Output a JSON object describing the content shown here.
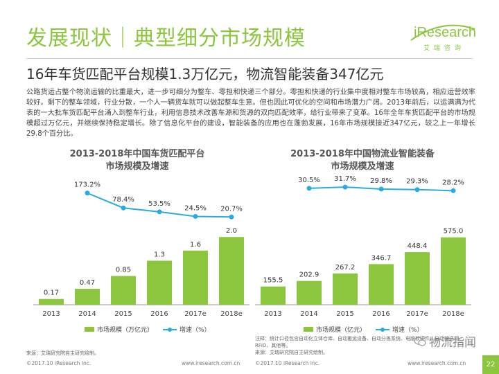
{
  "header": {
    "title": "发展现状｜典型细分市场规模",
    "logo_text": "iResearch",
    "logo_sub": "艾瑞咨询"
  },
  "subtitle": "16年车货匹配平台规模1.3万亿元，物流智能装备347亿元",
  "body_text": "公路货运占整个物流运输的比重最大，进一步可细分为整车、零担和快递三个部分。零担和快递的行业集中度相对整车市场较高，相应运营效率较好。剩下的整车领域，行业分散，一个人一辆货车就可以做起整车生意。但也因此可优化的空间和市场潜力广阔。2013年前后，以运满满为代表的一大批车货匹配平台涌入到整车行业，利用信息技术改善车源和货源的双向匹配效率，给行业带来了变革。16年全年车货匹配平台的市场规模超过万亿元，并继续保持稳定增长。除了信息化平台的建设，智能装备的应用也在蓬勃发展，16年市场规模接近347亿元，较之上一年增长29.8个百分比。",
  "colors": {
    "accent": "#8cc63f",
    "line": "#29abe2"
  },
  "chart_data": [
    {
      "type": "bar",
      "title_line1": "2013-2018年中国车货匹配平台",
      "title_line2": "市场规模及增速",
      "categories": [
        "2013",
        "2014",
        "2015",
        "2016",
        "2017e",
        "2018e"
      ],
      "series": [
        {
          "name": "市场规模（万亿元）",
          "kind": "bar",
          "values": [
            0.17,
            0.47,
            0.85,
            1.3,
            1.6,
            2.0
          ],
          "labels": [
            "0.17",
            "0.47",
            "0.85",
            "1.3",
            "1.6",
            "2.0"
          ]
        },
        {
          "name": "增速（%）",
          "kind": "line",
          "x": [
            "2014",
            "2015",
            "2016",
            "2017e",
            "2018e"
          ],
          "values": [
            173.2,
            78.4,
            53.5,
            24.5,
            20.7
          ],
          "labels": [
            "173.2%",
            "78.4%",
            "53.5%",
            "24.5%",
            "20.7%"
          ]
        }
      ],
      "ylim": [
        0,
        2.25
      ],
      "line_ylim": [
        0,
        300
      ]
    },
    {
      "type": "bar",
      "title_line1": "2013-2018年中国物流业智能装备",
      "title_line2": "市场规模及增速",
      "categories": [
        "2013",
        "2014",
        "2015",
        "2016",
        "2017e",
        "2018e"
      ],
      "series": [
        {
          "name": "市场规模（亿元）",
          "kind": "bar",
          "values": [
            155.5,
            202.9,
            267.2,
            346.7,
            448.4,
            575.0
          ],
          "labels": [
            "155.5",
            "202.9",
            "267.2",
            "346.7",
            "448.4",
            "575.0"
          ]
        },
        {
          "name": "增速（%）",
          "kind": "line",
          "x": [
            "2014",
            "2015",
            "2016",
            "2017e",
            "2018e"
          ],
          "values": [
            30.5,
            31.7,
            29.8,
            29.3,
            28.2
          ],
          "labels": [
            "30.5%",
            "31.7%",
            "29.8%",
            "29.3%",
            "28.2%"
          ]
        }
      ],
      "ylim": [
        0,
        650
      ],
      "line_ylim": [
        0,
        45
      ]
    }
  ],
  "notes": {
    "left_source": "来源：艾瑞研究院自主研究绘制。",
    "right_note": "注释：统计口径包含自动化立体仓库、自动搬运设备、自动分拣系统、电脑软硬件、自动输送机、RFID、其他等。",
    "right_source": "来源：艾瑞研究院自主研究绘制。"
  },
  "footer": {
    "copyright": "©2017.10 iResearch Inc.",
    "url": "www.iresearch.com.cn",
    "badge_text": "物流指闻",
    "page_number": "22"
  }
}
